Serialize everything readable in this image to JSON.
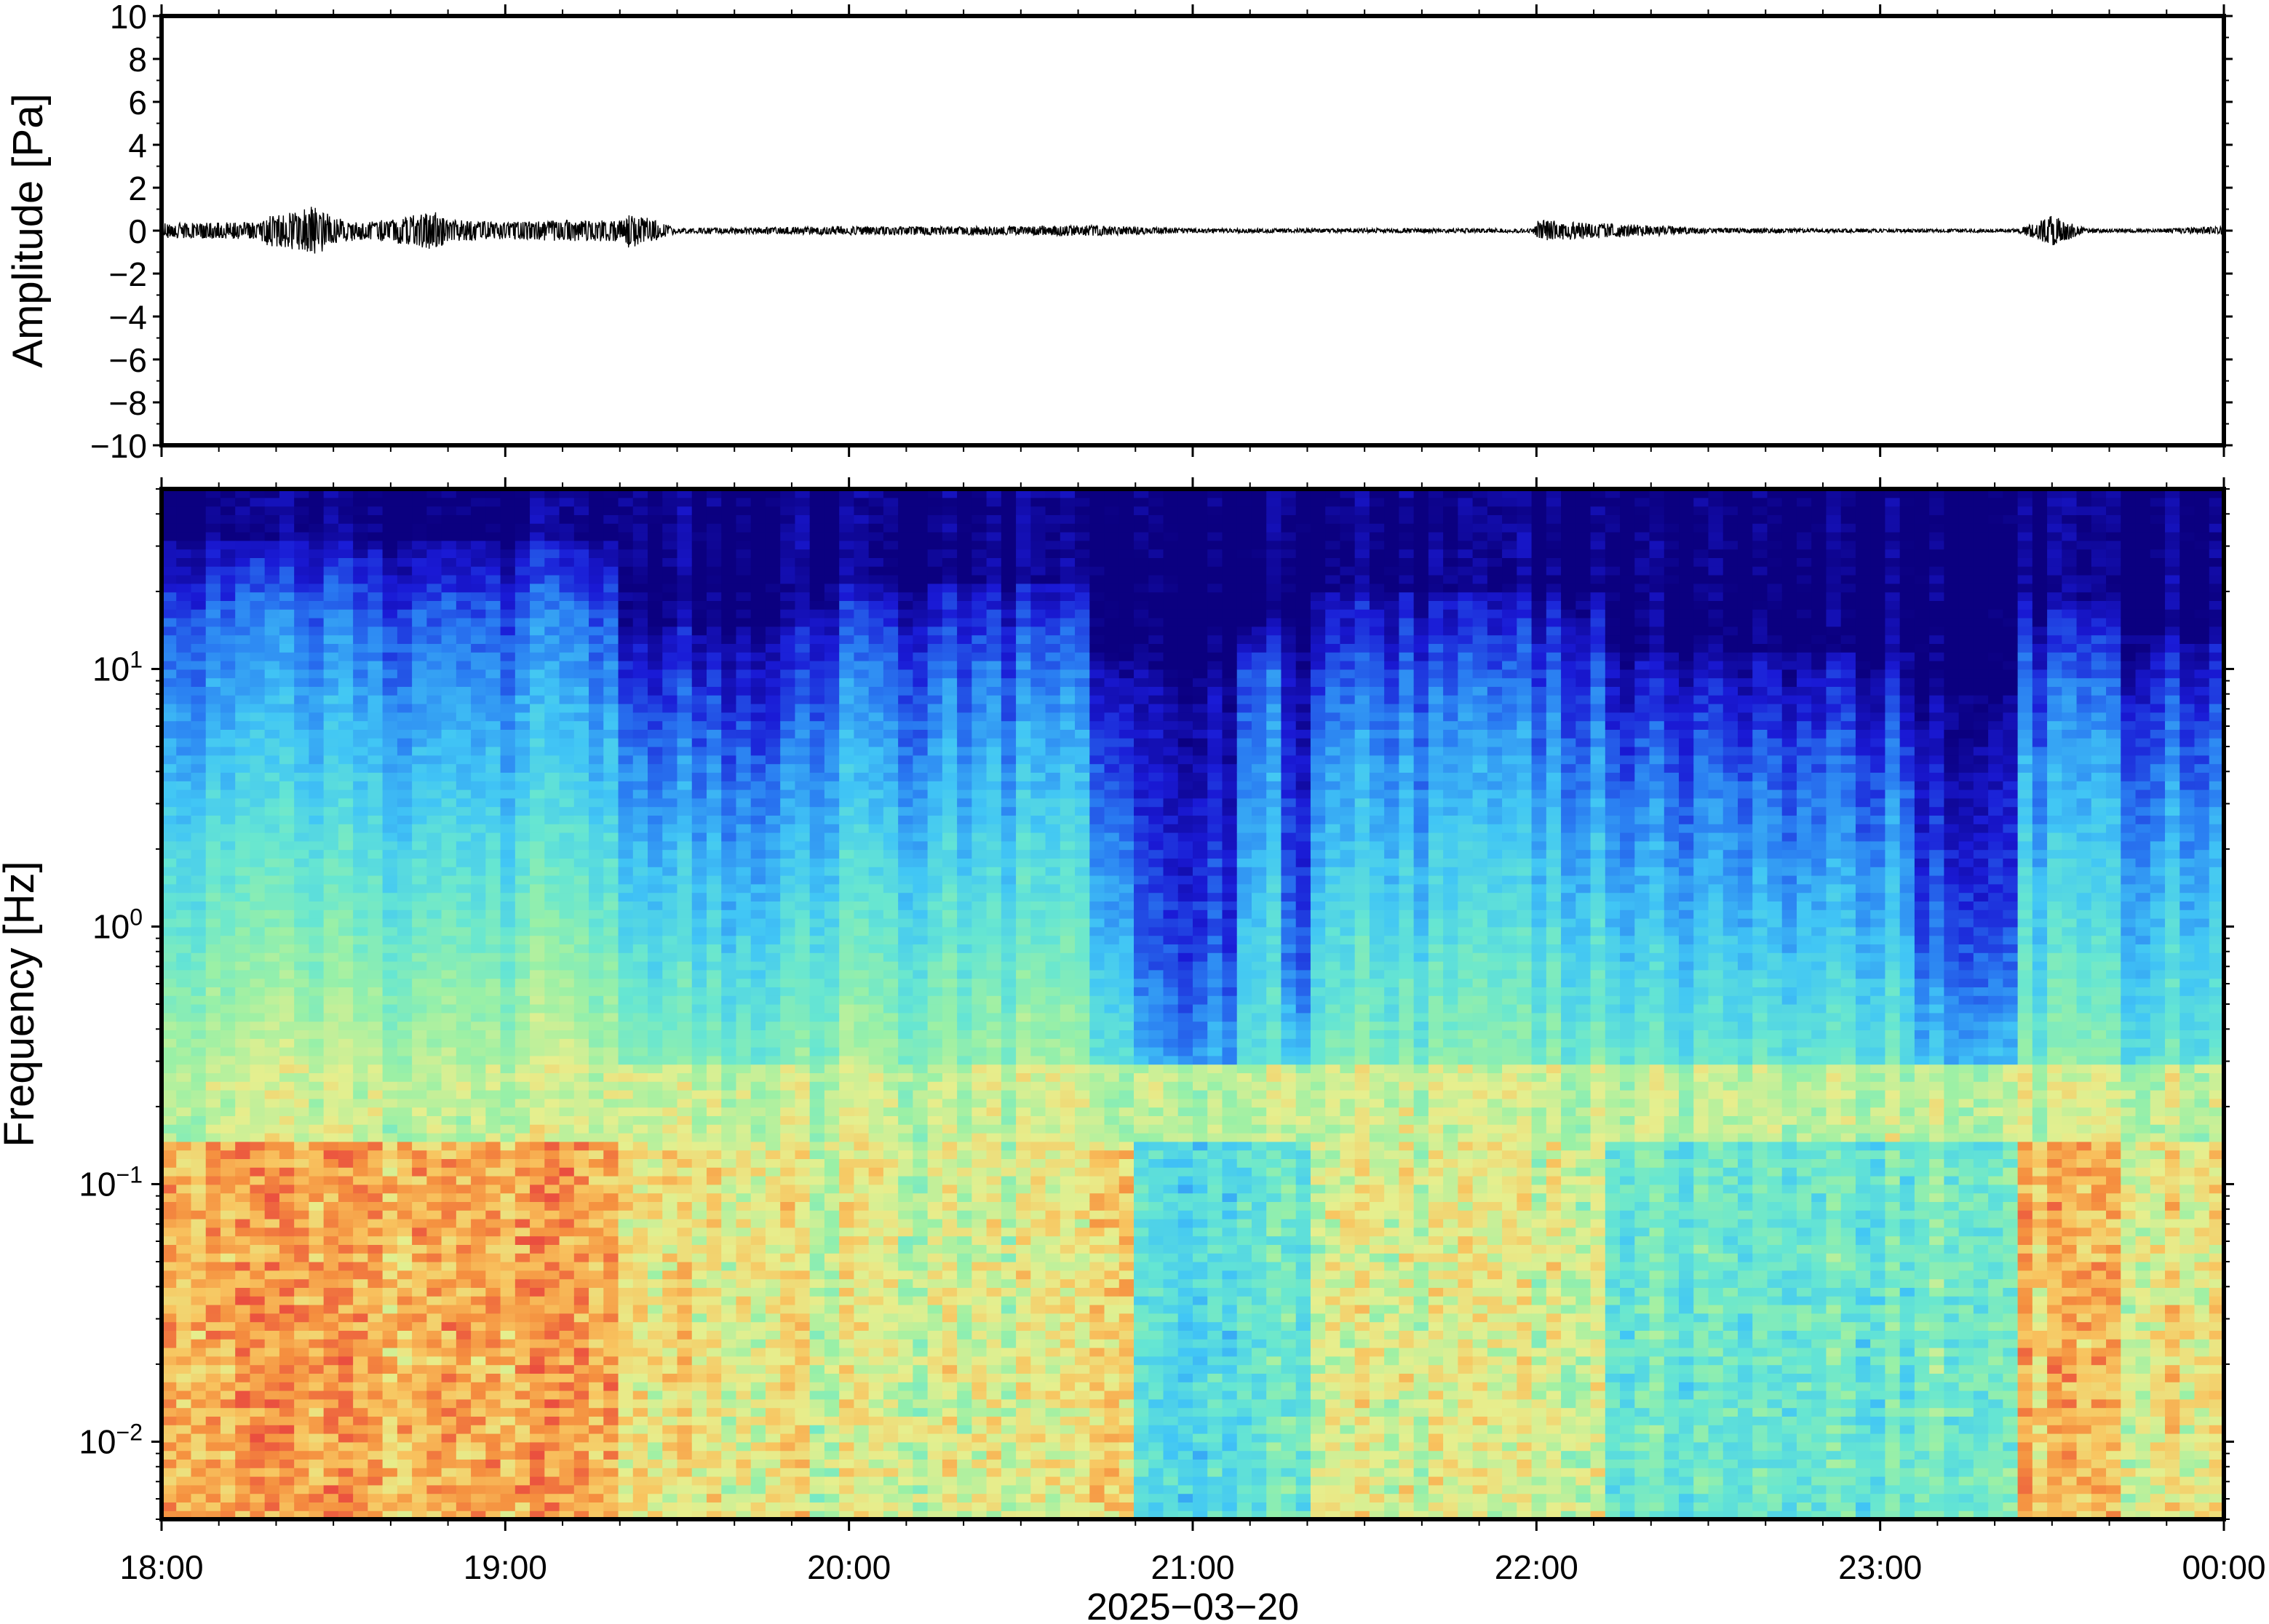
{
  "figure": {
    "date_label": "2025−03−20",
    "x_tick_labels": [
      "18:00",
      "19:00",
      "20:00",
      "21:00",
      "22:00",
      "23:00",
      "00:00"
    ]
  },
  "chart_data": [
    {
      "type": "line",
      "ylabel": "Amplitude [Pa]",
      "ylim": [
        -10,
        10
      ],
      "y_ticks": [
        10,
        8,
        6,
        4,
        2,
        0,
        -2,
        -4,
        -6,
        -8,
        -10
      ],
      "y_tick_labels": [
        "10",
        "8",
        "6",
        "4",
        "2",
        "0",
        "−2",
        "−4",
        "−6",
        "−8",
        "−10"
      ],
      "xlim": [
        "2025-03-20 18:00",
        "2025-03-21 00:00"
      ],
      "grid": false,
      "series": [
        {
          "color": "#000000",
          "envelope_x_hours": [
            0.0,
            0.3,
            0.29,
            0.4,
            0.44,
            0.5,
            0.6,
            0.8,
            0.82,
            0.84,
            1.0,
            1.2,
            1.35,
            1.36,
            1.5,
            2.0,
            2.5,
            2.7,
            3.0,
            3.5,
            3.99,
            4.0,
            4.5,
            5.0,
            5.4,
            5.5,
            5.6,
            5.8,
            6.0
          ],
          "envelope_amp_pa": [
            0.35,
            0.4,
            0.7,
            0.9,
            1.3,
            0.6,
            0.4,
            0.9,
            0.7,
            0.5,
            0.4,
            0.5,
            0.5,
            0.9,
            0.12,
            0.2,
            0.2,
            0.25,
            0.1,
            0.1,
            0.1,
            0.5,
            0.12,
            0.08,
            0.08,
            0.7,
            0.1,
            0.08,
            0.2
          ]
        }
      ]
    },
    {
      "type": "heatmap",
      "ylabel": "Frequency [Hz]",
      "y_scale": "log",
      "ylim": [
        0.005,
        50
      ],
      "y_tick_values": [
        0.01,
        0.1,
        1,
        10
      ],
      "y_tick_labels": [
        {
          "base": "10",
          "exp": "−2"
        },
        {
          "base": "10",
          "exp": "−1"
        },
        {
          "base": "10",
          "exp": "0"
        },
        {
          "base": "10",
          "exp": "1"
        }
      ],
      "xlim": [
        "2025-03-20 18:00",
        "2025-03-21 00:00"
      ],
      "colormap": [
        "#0b0080",
        "#1a1ad6",
        "#2a7ef2",
        "#41c6f5",
        "#66e6d2",
        "#9af0a6",
        "#e6ef8e",
        "#f8c560",
        "#f5903f",
        "#ea4d3f"
      ],
      "grid": false,
      "segments": [
        {
          "start_h": 0.0,
          "end_h": 1.35,
          "top_hz": 32,
          "floor_hz": 16,
          "mid_level": 0.6,
          "low_level": 0.9
        },
        {
          "start_h": 1.35,
          "end_h": 1.9,
          "top_hz": 15,
          "floor_hz": 5,
          "mid_level": 0.5,
          "low_level": 0.75
        },
        {
          "start_h": 1.9,
          "end_h": 2.7,
          "top_hz": 22,
          "floor_hz": 10,
          "mid_level": 0.55,
          "low_level": 0.7
        },
        {
          "start_h": 2.7,
          "end_h": 2.85,
          "top_hz": 12,
          "floor_hz": 4,
          "mid_level": 0.45,
          "low_level": 0.85
        },
        {
          "start_h": 2.85,
          "end_h": 3.15,
          "top_hz": 10,
          "floor_hz": 0.7,
          "mid_level": 0.3,
          "low_level": 0.45
        },
        {
          "start_h": 3.15,
          "end_h": 3.25,
          "top_hz": 15,
          "floor_hz": 10,
          "mid_level": 0.45,
          "low_level": 0.5
        },
        {
          "start_h": 3.25,
          "end_h": 3.33,
          "top_hz": 12,
          "floor_hz": 0.8,
          "mid_level": 0.35,
          "low_level": 0.5
        },
        {
          "start_h": 3.33,
          "end_h": 4.2,
          "top_hz": 20,
          "floor_hz": 8,
          "mid_level": 0.5,
          "low_level": 0.7
        },
        {
          "start_h": 4.2,
          "end_h": 5.1,
          "top_hz": 12,
          "floor_hz": 4,
          "mid_level": 0.45,
          "low_level": 0.5
        },
        {
          "start_h": 5.1,
          "end_h": 5.4,
          "top_hz": 8,
          "floor_hz": 0.9,
          "mid_level": 0.35,
          "low_level": 0.55
        },
        {
          "start_h": 5.4,
          "end_h": 5.7,
          "top_hz": 18,
          "floor_hz": 8,
          "mid_level": 0.5,
          "low_level": 0.85
        },
        {
          "start_h": 5.7,
          "end_h": 6.0,
          "top_hz": 14,
          "floor_hz": 5,
          "mid_level": 0.45,
          "low_level": 0.75
        }
      ]
    }
  ]
}
